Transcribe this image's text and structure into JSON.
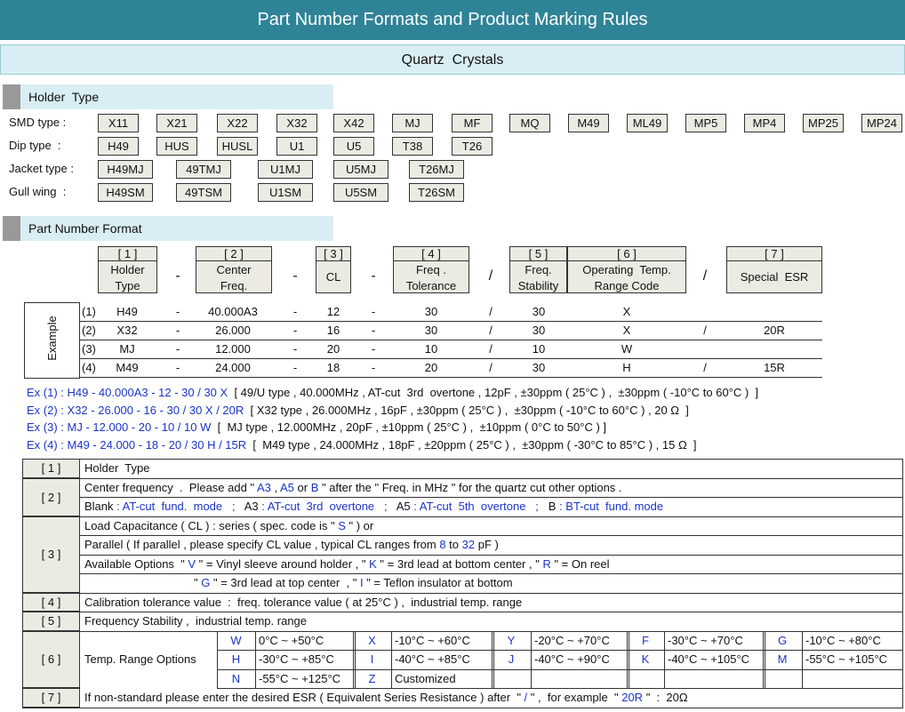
{
  "title": "Part Number Formats and Product Marking Rules",
  "subtitle": "Quartz  Crystals",
  "holder_section": {
    "heading": "Holder  Type",
    "rows": [
      {
        "label": "SMD type :",
        "items": [
          "X11",
          "X21",
          "X22",
          "X32",
          "X42",
          "MJ",
          "MF",
          "MQ",
          "M49",
          "ML49",
          "MP5",
          "MP4",
          "MP25",
          "MP24"
        ]
      },
      {
        "label": "Dip type  :",
        "items": [
          "H49",
          "HUS",
          "HUSL",
          "U1",
          "U5",
          "T38",
          "T26"
        ]
      },
      {
        "label": "Jacket type :",
        "items": [
          "H49MJ",
          "49TMJ",
          "U1MJ",
          "U5MJ",
          "T26MJ"
        ]
      },
      {
        "label": "Gull wing  :",
        "items": [
          "H49SM",
          "49TSM",
          "U1SM",
          "U5SM",
          "T26SM"
        ]
      }
    ]
  },
  "format_section": {
    "heading": "Part Number Format",
    "columns": [
      {
        "index": "[ 1 ]",
        "label": [
          "Holder",
          "Type"
        ]
      },
      {
        "index": "[ 2 ]",
        "label": [
          "Center",
          "Freq."
        ]
      },
      {
        "index": "[ 3 ]",
        "label": [
          "CL"
        ]
      },
      {
        "index": "[ 4 ]",
        "label": [
          "Freq .",
          "Tolerance"
        ]
      },
      {
        "index": "[ 5 ]",
        "label": [
          "Freq.",
          "Stability"
        ]
      },
      {
        "index": "[ 6 ]",
        "label": [
          "Operating  Temp.",
          "Range Code"
        ]
      },
      {
        "index": "[ 7 ]",
        "label": [
          "Special  ESR"
        ]
      }
    ],
    "separators": [
      "-",
      "-",
      "-",
      "/",
      "/"
    ]
  },
  "examples": {
    "label": "Example",
    "rows": [
      {
        "num": "(1)",
        "cells": [
          "H49",
          "-",
          "40.000A3",
          "-",
          "12",
          "-",
          "30",
          "/",
          "30",
          "X",
          null,
          null
        ]
      },
      {
        "num": "(2)",
        "cells": [
          "X32",
          "-",
          "26.000",
          "-",
          "16",
          "-",
          "30",
          "/",
          "30",
          "X",
          "/",
          "20R"
        ]
      },
      {
        "num": "(3)",
        "cells": [
          "MJ",
          "-",
          "12.000",
          "-",
          "20",
          "-",
          "10",
          "/",
          "10",
          "W",
          null,
          null
        ]
      },
      {
        "num": "(4)",
        "cells": [
          "M49",
          "-",
          "24.000",
          "-",
          "18",
          "-",
          "20",
          "/",
          "30",
          "H",
          "/",
          "15R"
        ]
      }
    ]
  },
  "ex_lines": [
    {
      "label": "Ex (1) :",
      "code": "H49 - 40.000A3 - 12 - 30 / 30 X",
      "desc": "[ 49/U type , 40.000MHz , AT-cut  3rd  overtone , 12pF , ±30ppm ( 25°C ) ,  ±30ppm ( -10°C to 60°C )  ]"
    },
    {
      "label": "Ex (2) :",
      "code": "X32 - 26.000 - 16 - 30 / 30 X / 20R",
      "desc": "[ X32 type , 26.000MHz , 16pF , ±30ppm ( 25°C ) ,  ±30ppm ( -10°C to 60°C ) , 20 Ω  ]"
    },
    {
      "label": "Ex (3) :",
      "code": "MJ - 12.000 - 20 - 10 / 10 W",
      "desc": "[  MJ type , 12.000MHz , 20pF , ±10ppm ( 25°C ) ,  ±10ppm ( 0°C to 50°C ) ]"
    },
    {
      "label": "Ex (4) :",
      "code": "M49 - 24.000 - 18 - 20 / 30 H / 15R",
      "desc": "[  M49 type , 24.000MHz , 18pF , ±20ppm ( 25°C ) ,  ±30ppm ( -30°C to 85°C ) , 15 Ω  ]"
    }
  ],
  "rules": [
    {
      "key": "[ 1 ]",
      "lines": [
        [
          "Holder  Type"
        ]
      ]
    },
    {
      "key": "[ 2 ]",
      "lines": [
        [
          "Center frequency  .  Please add \" ",
          "A3",
          " , ",
          "A5",
          " or ",
          "B",
          " \" after the \" Freq. in MHz \" for the quartz cut other options ."
        ],
        [
          "Blank",
          " : AT-cut  fund.  mode   ;   ",
          "A3",
          " : AT-cut  3rd  overtone   ;   ",
          "A5",
          " : AT-cut  5th  overtone   ;   ",
          "B",
          " : BT-cut  fund. mode"
        ]
      ]
    },
    {
      "key": "[ 3 ]",
      "lines": [
        [
          "Load Capacitance ( CL ) : series ( spec. code is \" ",
          "S",
          " \" ) or"
        ],
        [
          "Parallel ( If parallel , please specify CL value , typical CL ranges from ",
          "8",
          " to ",
          "32",
          " pF )"
        ],
        [
          "Available Options  \" ",
          "V",
          " \" = Vinyl sleeve around holder , \" ",
          "K",
          " \" = 3rd lead at bottom center , \" ",
          "R",
          " \" = On reel"
        ],
        [
          "\" ",
          "G",
          " \" = 3rd lead at top center  , \" ",
          "I",
          " \" = Teflon insulator at bottom"
        ]
      ]
    },
    {
      "key": "[ 4 ]",
      "lines": [
        [
          "Calibration tolerance value  :  freq. tolerance value ( at 25°C ) ,  industrial temp. range"
        ]
      ]
    },
    {
      "key": "[ 5 ]",
      "lines": [
        [
          "Frequency Stability ,  industrial temp. range"
        ]
      ]
    },
    {
      "key": "[ 6 ]",
      "label": "Temp. Range Options",
      "options": [
        [
          {
            "code": "W",
            "range": "0°C ~ +50°C"
          },
          {
            "code": "X",
            "range": "-10°C ~ +60°C"
          },
          {
            "code": "Y",
            "range": "-20°C ~ +70°C"
          },
          {
            "code": "F",
            "range": "-30°C ~ +70°C"
          },
          {
            "code": "G",
            "range": "-10°C ~ +80°C"
          }
        ],
        [
          {
            "code": "H",
            "range": "-30°C ~ +85°C"
          },
          {
            "code": "I",
            "range": "-40°C ~ +85°C"
          },
          {
            "code": "J",
            "range": "-40°C ~ +90°C"
          },
          {
            "code": "K",
            "range": "-40°C ~ +105°C"
          },
          {
            "code": "M",
            "range": "-55°C ~ +105°C"
          }
        ],
        [
          {
            "code": "N",
            "range": "-55°C ~ +125°C"
          },
          {
            "code": "Z",
            "range": "Customized"
          },
          null,
          null,
          null
        ]
      ]
    },
    {
      "key": "[ 7 ]",
      "lines": [
        [
          "If non-standard please enter the desired ESR ( Equivalent Series Resistance ) after  \" ",
          "/",
          " \" ,  for example  \" ",
          "20R",
          " \"  :  20Ω"
        ]
      ]
    }
  ]
}
